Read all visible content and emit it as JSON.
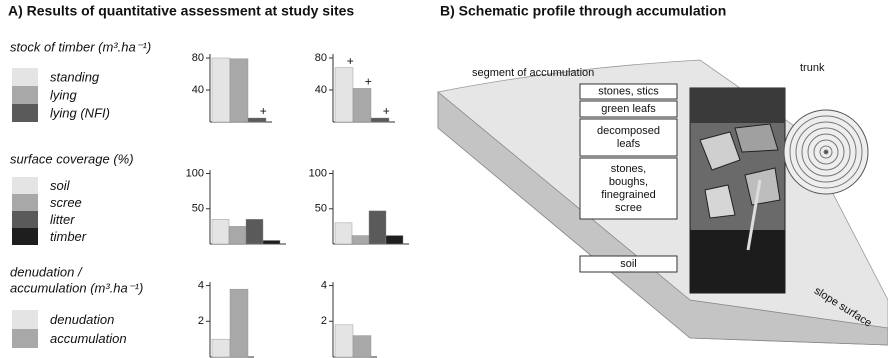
{
  "panel_a": {
    "title": "A) Results of quantitative assessment at study sites"
  },
  "panel_b": {
    "title": "B) Schematic profile through accumulation",
    "segment_label": "segment of accumulation",
    "trunk_label": "trunk",
    "slope_label": "slope surface",
    "layers": [
      [
        "stones, stics"
      ],
      [
        "green leafs"
      ],
      [
        "decomposed",
        "leafs"
      ],
      [
        "stones,",
        "boughs,",
        "finegrained",
        "scree"
      ],
      [
        "soil"
      ]
    ]
  },
  "chart_data": [
    {
      "type": "bar",
      "title": [
        "stock of timber (m³.ha⁻¹)"
      ],
      "categories": [
        null,
        null
      ],
      "series": [
        {
          "name": "standing",
          "color": "#e4e4e4",
          "values": [
            80,
            68
          ]
        },
        {
          "name": "lying",
          "color": "#a8a8a8",
          "values": [
            79,
            42
          ]
        },
        {
          "name": "lying (NFI)",
          "color": "#5a5a5a",
          "values": [
            5,
            5
          ]
        }
      ],
      "ylim": [
        0,
        85
      ],
      "yticks": [
        40,
        80
      ],
      "annotations": [
        {
          "series": 2,
          "category": 0,
          "text": "+"
        },
        {
          "series": 0,
          "category": 1,
          "text": "+"
        },
        {
          "series": 1,
          "category": 1,
          "text": "+"
        },
        {
          "series": 2,
          "category": 1,
          "text": "+"
        }
      ]
    },
    {
      "type": "bar",
      "title": [
        "surface coverage (%)"
      ],
      "categories": [
        null,
        null
      ],
      "series": [
        {
          "name": "soil",
          "color": "#e4e4e4",
          "values": [
            35,
            30
          ]
        },
        {
          "name": "scree",
          "color": "#a8a8a8",
          "values": [
            25,
            12
          ]
        },
        {
          "name": "litter",
          "color": "#5a5a5a",
          "values": [
            35,
            47
          ]
        },
        {
          "name": "timber",
          "color": "#1e1e1e",
          "values": [
            5,
            12
          ]
        }
      ],
      "ylim": [
        0,
        105
      ],
      "yticks": [
        50,
        100
      ]
    },
    {
      "type": "bar",
      "title": [
        "denudation /",
        "accumulation (m³.ha⁻¹)"
      ],
      "categories": [
        null,
        null
      ],
      "series": [
        {
          "name": "denudation",
          "color": "#e4e4e4",
          "values": [
            1,
            1.8
          ]
        },
        {
          "name": "accumulation",
          "color": "#a8a8a8",
          "values": [
            3.8,
            1.2
          ]
        }
      ],
      "ylim": [
        0,
        4.2
      ],
      "yticks": [
        2,
        4
      ]
    }
  ]
}
